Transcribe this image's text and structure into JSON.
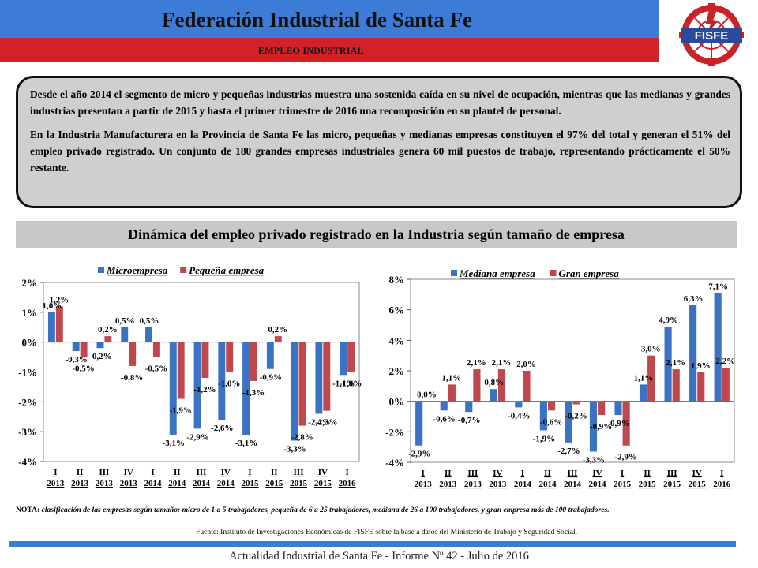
{
  "header": {
    "title": "Federación Industrial de Santa Fe",
    "subtitle": "EMPLEO INDUSTRIAL",
    "logo_text": "FISFE"
  },
  "intro": {
    "paragraph1": "Desde el año 2014 el segmento de micro y pequeñas industrias muestra una sostenida caída en su nivel de ocupación, mientras que las medianas y grandes industrias presentan a partir de 2015 y hasta el primer trimestre de 2016 una recomposición en su plantel de personal.",
    "paragraph2": "En la Industria Manufacturera en la Provincia de Santa Fe las micro, pequeñas y medianas empresas constituyen el 97% del total y generan el 51% del empleo privado registrado. Un conjunto de 180 grandes empresas industriales genera 60 mil puestos de trabajo, representando prácticamente el 50% restante."
  },
  "section_title": "Dinámica del empleo privado registrado en la Industria según tamaño de empresa",
  "chart_data": [
    {
      "type": "bar",
      "categories": [
        [
          "I",
          "2013"
        ],
        [
          "II",
          "2013"
        ],
        [
          "III",
          "2013"
        ],
        [
          "IV",
          "2013"
        ],
        [
          "I",
          "2014"
        ],
        [
          "II",
          "2014"
        ],
        [
          "III",
          "2014"
        ],
        [
          "IV",
          "2014"
        ],
        [
          "I",
          "2015"
        ],
        [
          "II",
          "2015"
        ],
        [
          "III",
          "2015"
        ],
        [
          "IV",
          "2015"
        ],
        [
          "I",
          "2016"
        ]
      ],
      "series": [
        {
          "name": "Microempresa",
          "color": "#3b73c4",
          "values": [
            1.0,
            -0.3,
            -0.2,
            0.5,
            0.5,
            -3.1,
            -2.9,
            -2.6,
            -3.1,
            -0.9,
            -3.3,
            -2.4,
            -1.1
          ],
          "labels": [
            "1,0%",
            "-0,3%",
            "-0,2%",
            "0,5%",
            "0,5%",
            "-3,1%",
            "-2,9%",
            "-2,6%",
            "-3,1%",
            "-0,9%",
            "-3,3%",
            "-2,4%",
            "-1,1%"
          ]
        },
        {
          "name": "Pequeña empresa",
          "color": "#c0484c",
          "values": [
            1.2,
            -0.5,
            0.2,
            -0.8,
            -0.5,
            -1.9,
            -1.2,
            -1.0,
            -1.3,
            0.2,
            -2.8,
            -2.3,
            -1.0
          ],
          "labels": [
            "1,2%",
            "-0,5%",
            "0,2%",
            "-0,8%",
            "-0,5%",
            "-1,9%",
            "-1,2%",
            "-1,0%",
            "-1,3%",
            "0,2%",
            "-2,8%",
            "-2,3%",
            "-1,0%"
          ]
        }
      ],
      "ylim": [
        -4,
        2
      ],
      "yticks": [
        "-4%",
        "-3%",
        "-2%",
        "-1%",
        "0%",
        "1%",
        "2%"
      ],
      "grid": false,
      "legend": "top"
    },
    {
      "type": "bar",
      "categories": [
        [
          "I",
          "2013"
        ],
        [
          "II",
          "2013"
        ],
        [
          "III",
          "2013"
        ],
        [
          "IV",
          "2013"
        ],
        [
          "I",
          "2014"
        ],
        [
          "II",
          "2014"
        ],
        [
          "III",
          "2014"
        ],
        [
          "IV",
          "2014"
        ],
        [
          "I",
          "2015"
        ],
        [
          "II",
          "2015"
        ],
        [
          "III",
          "2015"
        ],
        [
          "IV",
          "2015"
        ],
        [
          "I",
          "2016"
        ]
      ],
      "series": [
        {
          "name": "Mediana empresa",
          "color": "#3b73c4",
          "values": [
            -2.9,
            -0.6,
            -0.7,
            0.8,
            -0.4,
            -1.9,
            -2.7,
            -3.3,
            -0.9,
            1.1,
            4.9,
            6.3,
            7.1
          ],
          "labels": [
            "-2,9%",
            "-0,6%",
            "-0,7%",
            "0,8%",
            "-0,4%",
            "-1,9%",
            "-2,7%",
            "-3,3%",
            "-0,9%",
            "1,1%",
            "4,9%",
            "6,3%",
            "7,1%"
          ]
        },
        {
          "name": "Gran empresa",
          "color": "#c0484c",
          "values": [
            0.0,
            1.1,
            2.1,
            2.1,
            2.0,
            -0.6,
            -0.2,
            -0.9,
            -2.9,
            3.0,
            2.1,
            1.9,
            2.2
          ],
          "labels": [
            "0,0%",
            "1,1%",
            "2,1%",
            "2,1%",
            "2,0%",
            "-0,6%",
            "-0,2%",
            "-0,9%",
            "-2,9%",
            "3,0%",
            "2,1%",
            "1,9%",
            "2,2%"
          ]
        }
      ],
      "ylim": [
        -4,
        8
      ],
      "yticks": [
        "-4%",
        "-2%",
        "0%",
        "2%",
        "4%",
        "6%",
        "8%"
      ],
      "grid": false,
      "legend": "top"
    }
  ],
  "note": {
    "label": "NOTA:",
    "text": "clasificación de las empresas según tamaño: micro de 1 a 5 trabajadores, pequeña de 6 a 25 trabajadores, mediana de 26 a 100 trabajadores, y gran empresa más de 100 trabajadores.",
    "source": "Fuente: Instituto de Investigaciones Económicas de FISFE sobre la base a datos del Ministerio de Trabajo y Seguridad Social."
  },
  "footer": "Actualidad Industrial de Santa Fe - Informe Nº 42 - Julio de 2016",
  "colors": {
    "header_blue": "#3d7cd6",
    "header_red": "#d42027",
    "series_blue": "#3b73c4",
    "series_red": "#c0484c"
  }
}
